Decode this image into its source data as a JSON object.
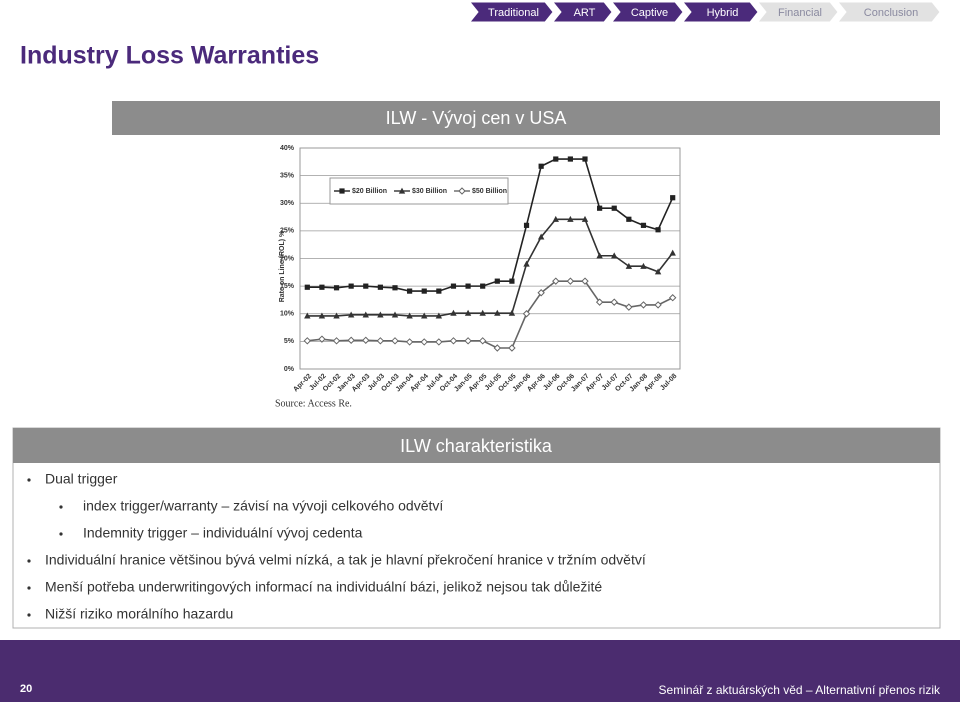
{
  "nav": [
    "Traditional",
    "ART",
    "Captive",
    "Hybrid",
    "Financial",
    "Conclusion"
  ],
  "header": {
    "title": "Industry Loss Warranties"
  },
  "chart_data": {
    "type": "line",
    "title": "ILW - Vývoj cen v USA",
    "y_label": "Rate on Line (ROL) %",
    "source": "Source: Access Re.",
    "categories": [
      "Apr-02",
      "Jul-02",
      "Oct-02",
      "Jan-03",
      "Apr-03",
      "Jul-03",
      "Oct-03",
      "Jan-04",
      "Apr-04",
      "Jul-04",
      "Oct-04",
      "Jan-05",
      "Apr-05",
      "Jul-05",
      "Oct-05",
      "Jan-06",
      "Apr-06",
      "Jul-06",
      "Oct-06",
      "Jan-07",
      "Apr-07",
      "Jul-07",
      "Oct-07",
      "Jan-08",
      "Apr-08",
      "Jul-08"
    ],
    "series": [
      {
        "name": "$20 Billion",
        "color": "#222222",
        "marker": "square",
        "values": [
          14.8,
          14.8,
          14.7,
          15,
          15,
          14.8,
          14.7,
          14.1,
          14.1,
          14.1,
          15,
          15,
          15,
          15.9,
          15.9,
          26,
          36.7,
          38,
          38,
          38,
          29.1,
          29.1,
          27.1,
          26,
          25.2,
          31
        ]
      },
      {
        "name": "$30 Billion",
        "color": "#333333",
        "marker": "triangle",
        "values": [
          9.6,
          9.6,
          9.6,
          9.8,
          9.8,
          9.8,
          9.8,
          9.6,
          9.6,
          9.6,
          10.1,
          10.1,
          10.1,
          10.1,
          10.1,
          19,
          23.9,
          27.1,
          27.1,
          27.1,
          20.5,
          20.5,
          18.6,
          18.6,
          17.6,
          21
        ]
      },
      {
        "name": "$50 Billion",
        "color": "#666666",
        "marker": "diamond",
        "values": [
          5.1,
          5.4,
          5.1,
          5.2,
          5.2,
          5.1,
          5.1,
          4.9,
          4.9,
          4.9,
          5.1,
          5.1,
          5.1,
          3.8,
          3.8,
          10,
          13.8,
          15.9,
          15.9,
          15.9,
          12.1,
          12.1,
          11.2,
          11.6,
          11.6,
          12.9
        ]
      }
    ],
    "ylim": [
      0,
      40
    ],
    "yticks": [
      {
        "value": 0,
        "label": "0%"
      },
      {
        "value": 5,
        "label": "5%"
      },
      {
        "value": 10,
        "label": "10%"
      },
      {
        "value": 15,
        "label": "15%"
      },
      {
        "value": 20,
        "label": "20%"
      },
      {
        "value": 25,
        "label": "25%"
      },
      {
        "value": 30,
        "label": "30%"
      },
      {
        "value": 35,
        "label": "35%"
      },
      {
        "value": 40,
        "label": "40%"
      }
    ],
    "grid": true,
    "legend": "top-left"
  },
  "panel": {
    "title": "ILW charakteristika",
    "bullets": [
      {
        "text": "Dual trigger",
        "sub": [
          "index trigger/warranty – závisí na vývoji celkového odvětví",
          "Indemnity trigger – individuální vývoj cedenta"
        ]
      },
      {
        "text": "Individuální  hranice většinou bývá velmi nízká, a tak je hlavní překročení hranice v tržním odvětví"
      },
      {
        "text": "Menší potřeba underwritingových informací na individuální bázi, jelikož nejsou tak důležité"
      },
      {
        "text": "Nižší riziko morálního hazardu"
      }
    ]
  },
  "footer": {
    "page": "20",
    "text": "Seminář z aktuárských věd – Alternativní přenos rizik"
  }
}
